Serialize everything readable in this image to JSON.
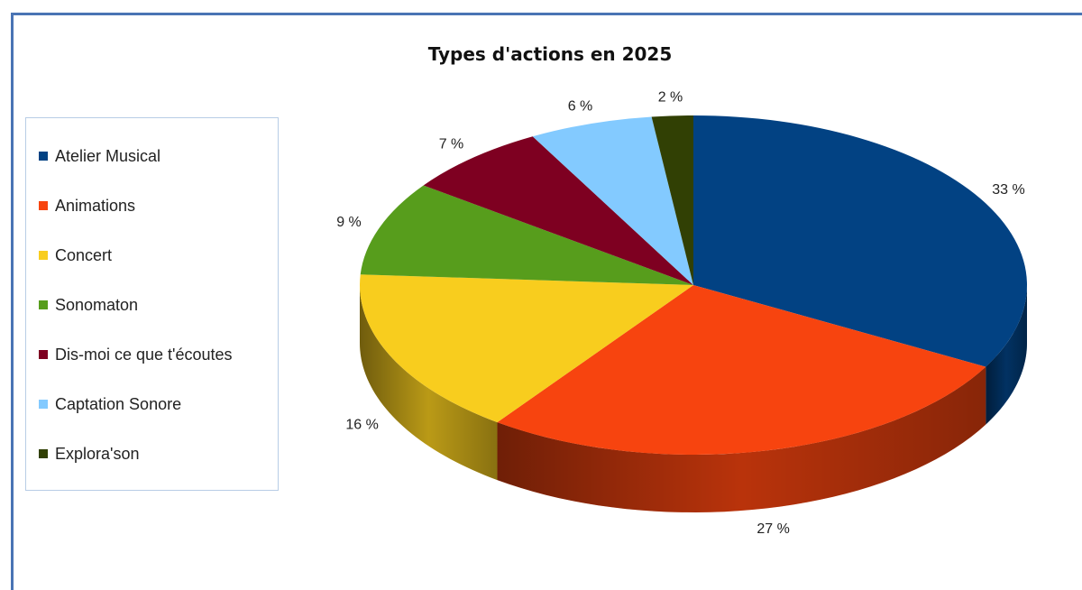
{
  "chart_data": {
    "type": "pie",
    "title": "Types d'actions en 2025",
    "slices": [
      {
        "label": "Atelier Musical",
        "value": 33,
        "display": "33 %",
        "color": "#024283"
      },
      {
        "label": "Animations",
        "value": 27,
        "display": "27 %",
        "color": "#f7440f"
      },
      {
        "label": "Concert",
        "value": 16,
        "display": "16 %",
        "color": "#f8cd1e"
      },
      {
        "label": "Sonomaton",
        "value": 9,
        "display": "9 %",
        "color": "#579d1c"
      },
      {
        "label": "Dis-moi ce que t'écoutes",
        "value": 7,
        "display": "7 %",
        "color": "#7e0021"
      },
      {
        "label": "Captation Sonore",
        "value": 6,
        "display": "6 %",
        "color": "#83caff"
      },
      {
        "label": "Explora'son",
        "value": 2,
        "display": "2 %",
        "color": "#314004"
      }
    ],
    "legend_position": "left",
    "style": "3d-tilted"
  }
}
